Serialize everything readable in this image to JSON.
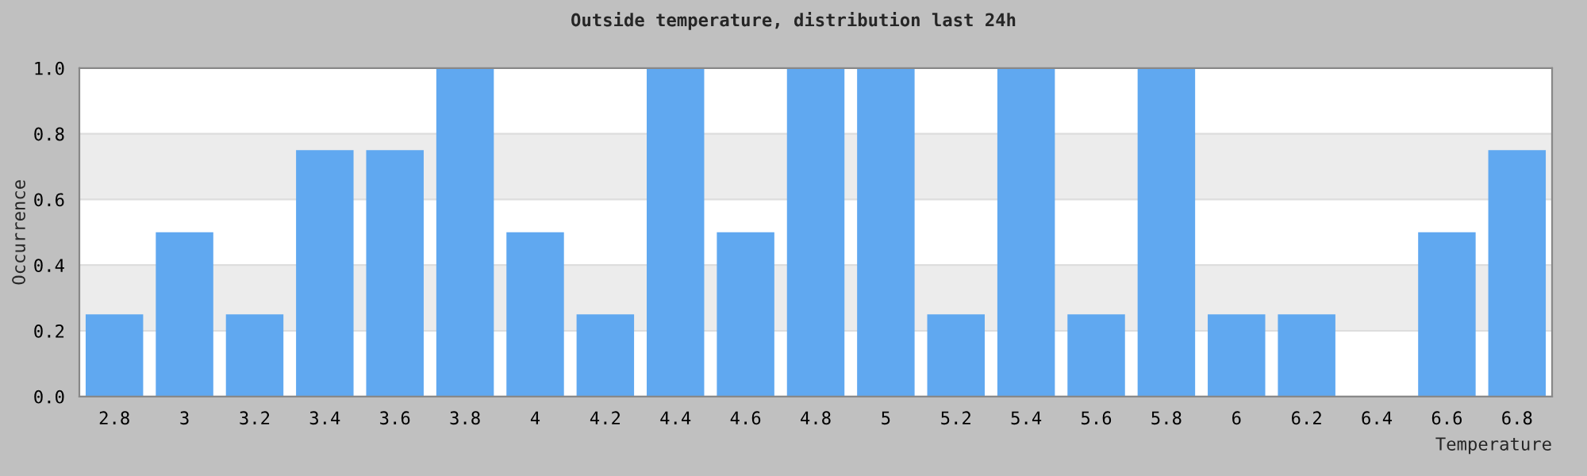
{
  "chart_data": {
    "type": "bar",
    "title": "Outside temperature, distribution last 24h",
    "xlabel": "Temperature",
    "ylabel": "Occurrence",
    "categories": [
      "2.8",
      "3",
      "3.2",
      "3.4",
      "3.6",
      "3.8",
      "4",
      "4.2",
      "4.4",
      "4.6",
      "4.8",
      "5",
      "5.2",
      "5.4",
      "5.6",
      "5.8",
      "6",
      "6.2",
      "6.4",
      "6.6",
      "6.8"
    ],
    "values": [
      0.25,
      0.5,
      0.25,
      0.75,
      0.75,
      1,
      0.5,
      0.25,
      1,
      0.5,
      1,
      1,
      0.25,
      1,
      0.25,
      1,
      0.25,
      0.25,
      0,
      0.5,
      0.75
    ],
    "color": "#60a8f0",
    "ylim": [
      0,
      1
    ],
    "yticks": [
      {
        "value": 0,
        "label": "0.0"
      },
      {
        "value": 0.2,
        "label": "0.2"
      },
      {
        "value": 0.4,
        "label": "0.4"
      },
      {
        "value": 0.6,
        "label": "0.6"
      },
      {
        "value": 0.8,
        "label": "0.8"
      },
      {
        "value": 1,
        "label": "1.0"
      }
    ],
    "grid": "y",
    "legend": false
  }
}
